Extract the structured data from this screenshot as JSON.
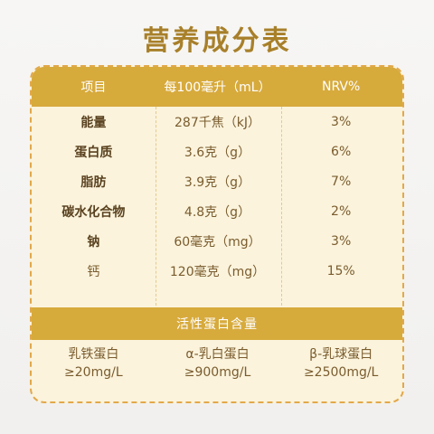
{
  "title": "营养成分表",
  "table": {
    "headers": [
      "项目",
      "每100毫升（mL）",
      "NRV%"
    ],
    "rows": [
      {
        "item": "能量",
        "amount": "287千焦（kJ）",
        "nrv": "3%"
      },
      {
        "item": "蛋白质",
        "amount": "3.6克（g）",
        "nrv": "6%"
      },
      {
        "item": "脂肪",
        "amount": "3.9克（g）",
        "nrv": "7%"
      },
      {
        "item": "碳水化合物",
        "amount": "4.8克（g）",
        "nrv": "2%"
      },
      {
        "item": "钠",
        "amount": "60毫克（mg）",
        "nrv": "3%"
      },
      {
        "item": "钙",
        "amount": "120毫克（mg）",
        "nrv": "15%"
      }
    ]
  },
  "active_protein": {
    "title": "活性蛋白含量",
    "items": [
      {
        "name": "乳铁蛋白",
        "value": "≥20mg/L"
      },
      {
        "name": "α-乳白蛋白",
        "value": "≥900mg/L"
      },
      {
        "name": "β-乳球蛋白",
        "value": "≥2500mg/L"
      }
    ]
  },
  "colors": {
    "accent": "#d7aa3c",
    "title": "#a8802a",
    "card": "#fbf3dc",
    "border": "#e2a84a"
  }
}
